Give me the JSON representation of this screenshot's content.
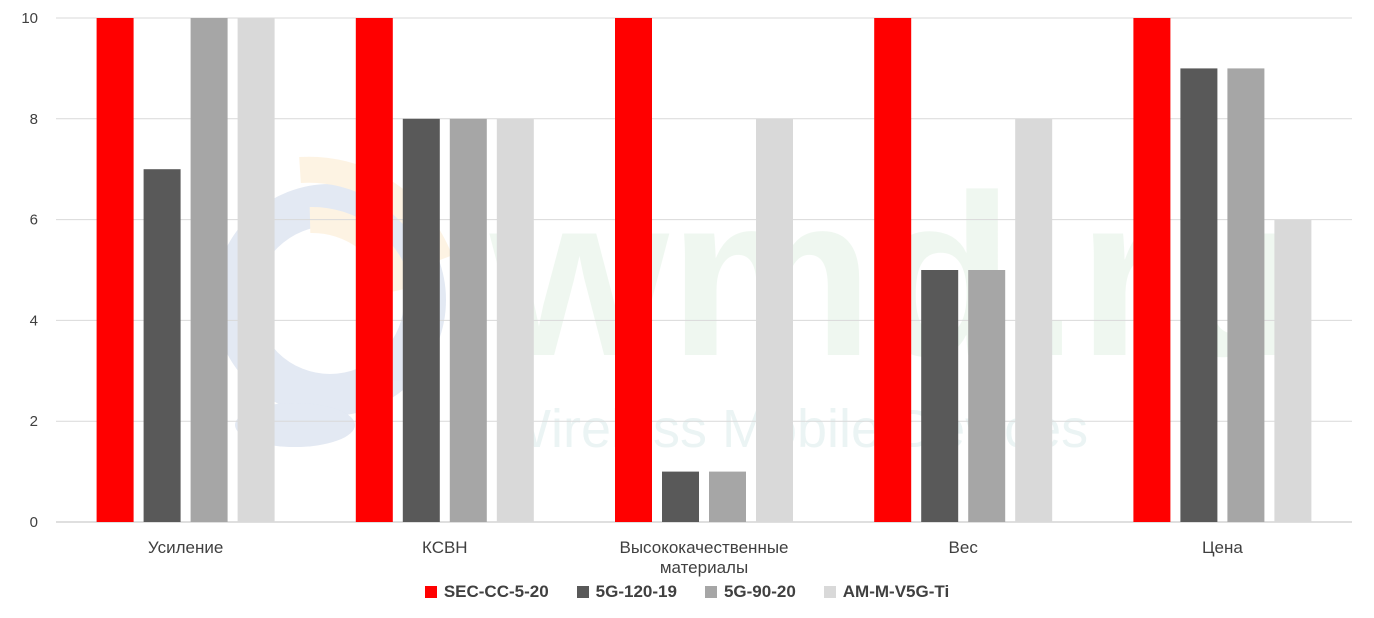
{
  "chart_data": {
    "type": "bar",
    "categories": [
      [
        "Усиление"
      ],
      [
        "КСВН"
      ],
      [
        "Высококачественные",
        "материалы"
      ],
      [
        "Вес"
      ],
      [
        "Цена"
      ]
    ],
    "series": [
      {
        "name": "SEC-CC-5-20",
        "color": "#ff0000",
        "values": [
          10,
          10,
          10,
          10,
          10
        ]
      },
      {
        "name": "5G-120-19",
        "color": "#595959",
        "values": [
          7,
          8,
          1,
          5,
          9
        ]
      },
      {
        "name": "5G-90-20",
        "color": "#a6a6a6",
        "values": [
          10,
          8,
          1,
          5,
          9
        ]
      },
      {
        "name": "AM-M-V5G-Ti",
        "color": "#d9d9d9",
        "values": [
          10,
          8,
          8,
          8,
          6
        ]
      }
    ],
    "ylim": [
      0,
      10
    ],
    "yticks": [
      0,
      2,
      4,
      6,
      8,
      10
    ],
    "grid": true,
    "legend_position": "bottom"
  },
  "watermark": {
    "brand": "wmd.ru",
    "tagline": "Wireless Mobile Devices"
  }
}
